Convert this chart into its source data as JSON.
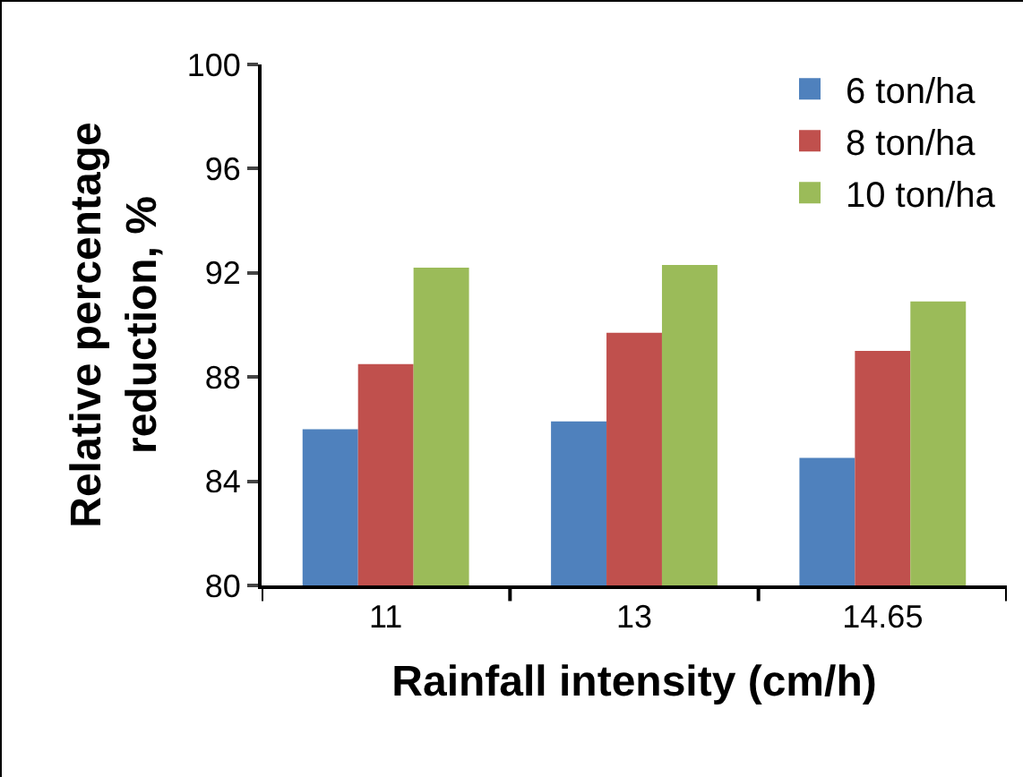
{
  "chart_data": {
    "type": "bar",
    "xlabel": "Rainfall intensity (cm/h)",
    "ylabel": "Relative percentage\nreduction, %",
    "categories": [
      "11",
      "13",
      "14.65"
    ],
    "series": [
      {
        "name": "6 ton/ha",
        "color": "#4f81bd",
        "values": [
          86.0,
          86.3,
          84.9
        ]
      },
      {
        "name": "8 ton/ha",
        "color": "#c0504d",
        "values": [
          88.5,
          89.7,
          89.0
        ]
      },
      {
        "name": "10 ton/ha",
        "color": "#9bbb59",
        "values": [
          92.2,
          92.3,
          90.9
        ]
      }
    ],
    "ylim": [
      80,
      100
    ],
    "yticks": [
      80,
      84,
      88,
      92,
      96,
      100
    ],
    "grid": false,
    "legend": "top right"
  }
}
